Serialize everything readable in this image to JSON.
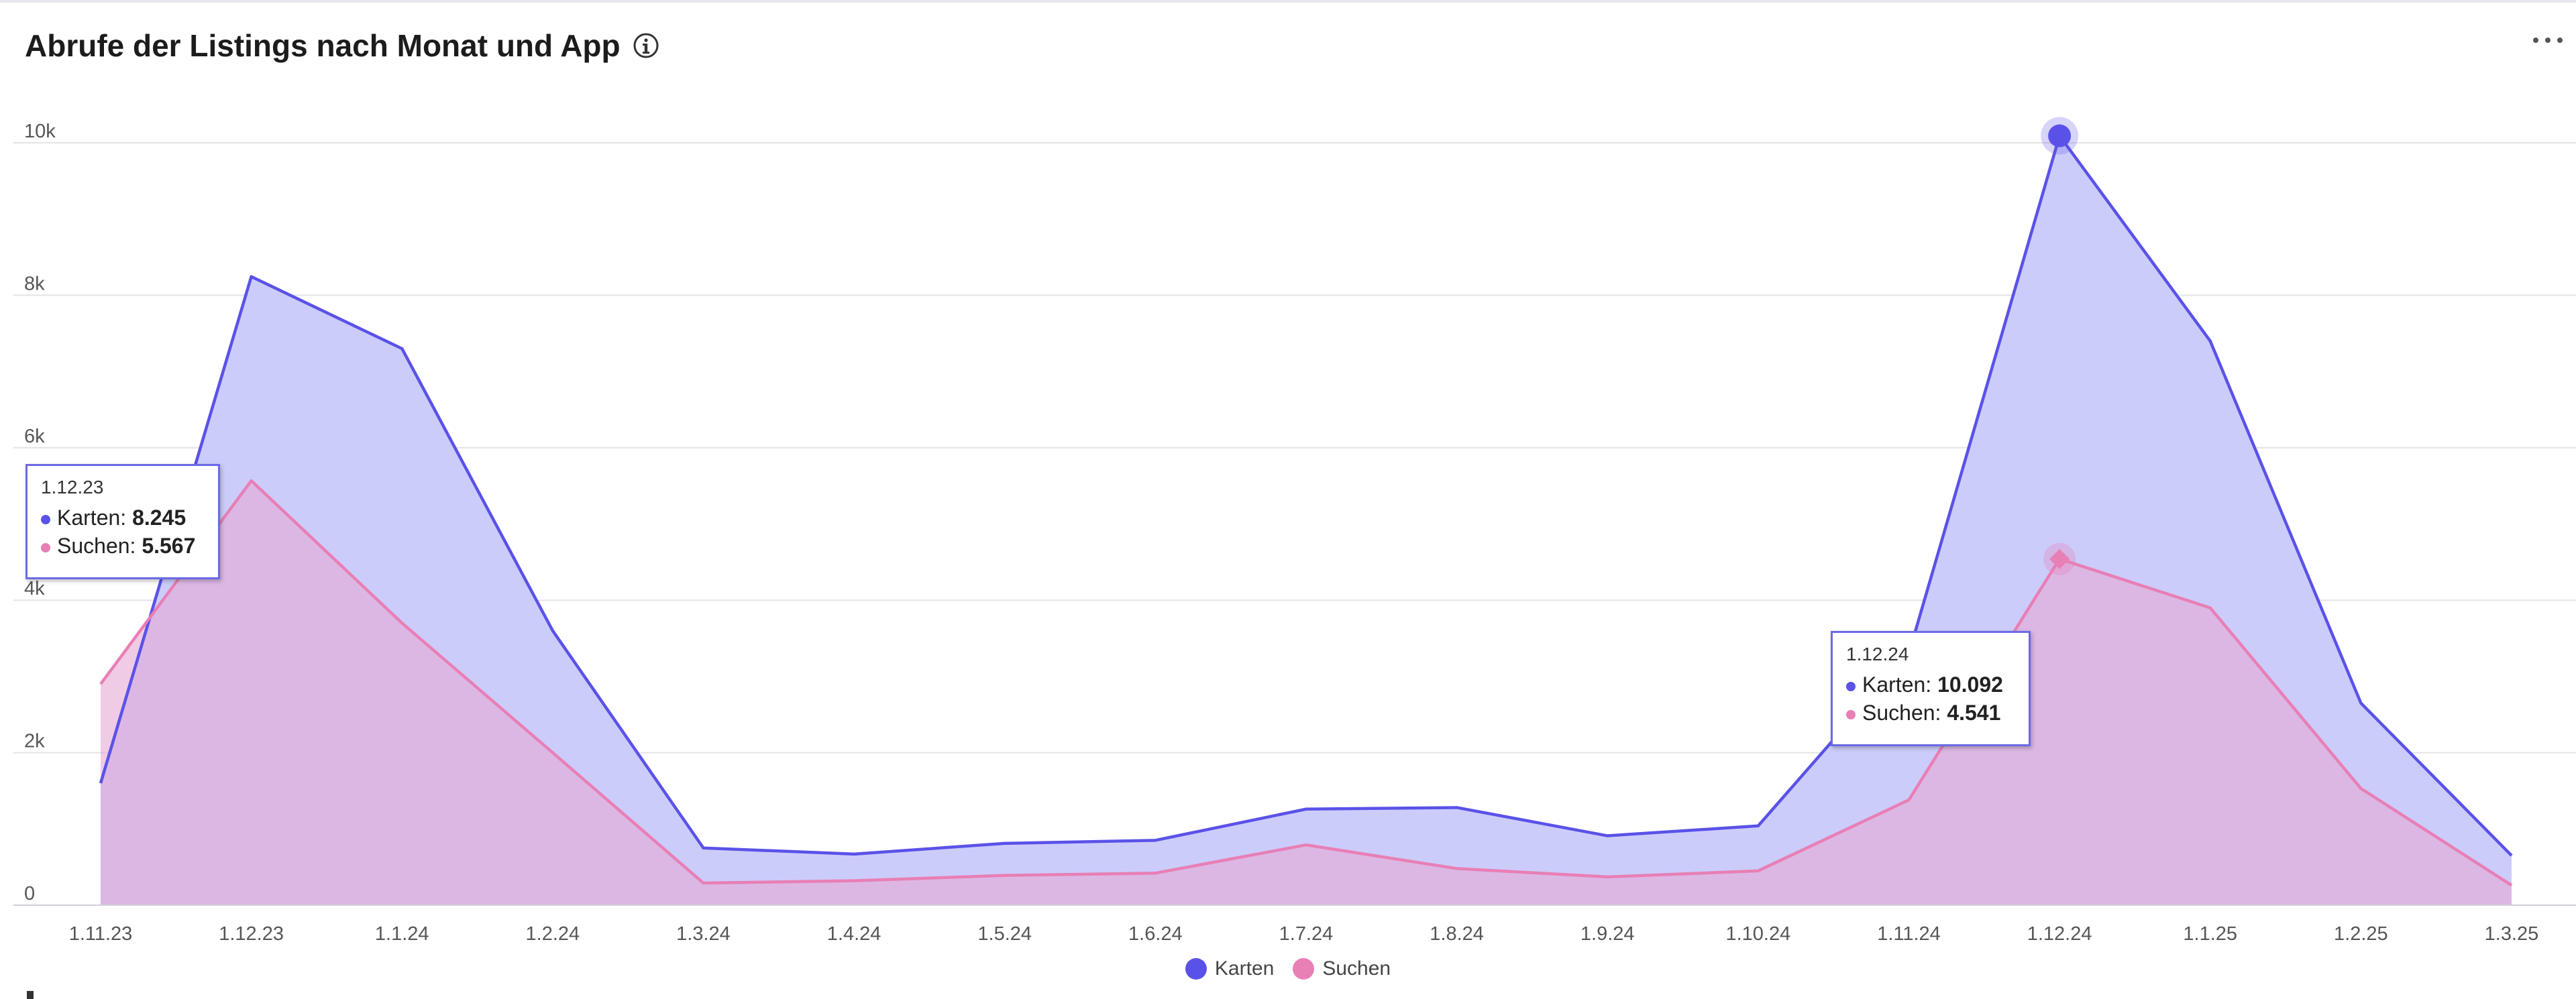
{
  "header": {
    "title": "Abrufe der Listings nach Monat und App"
  },
  "icons": {
    "info": "info-circle-icon",
    "more": "more-horizontal-icon"
  },
  "colors": {
    "karten": "#5a52e8",
    "karten_fill": "#c9c9fa",
    "suchen": "#e87fb5",
    "suchen_fill": "#d6b3e0",
    "grid": "#e3e3e8",
    "axis_text": "#555555"
  },
  "chart_data": {
    "type": "area",
    "x": [
      "1.11.23",
      "1.12.23",
      "1.1.24",
      "1.2.24",
      "1.3.24",
      "1.4.24",
      "1.5.24",
      "1.6.24",
      "1.7.24",
      "1.8.24",
      "1.9.24",
      "1.10.24",
      "1.11.24",
      "1.12.24",
      "1.1.25",
      "1.2.25",
      "1.3.25"
    ],
    "series": [
      {
        "name": "Karten",
        "values": [
          1600,
          8245,
          7300,
          3600,
          750,
          670,
          810,
          850,
          1260,
          1280,
          910,
          1040,
          3300,
          10092,
          7400,
          2650,
          650
        ]
      },
      {
        "name": "Suchen",
        "values": [
          2900,
          5567,
          3700,
          2000,
          290,
          320,
          390,
          420,
          790,
          480,
          370,
          450,
          1380,
          4541,
          3900,
          1530,
          260
        ]
      }
    ],
    "y_ticks": [
      0,
      2000,
      4000,
      6000,
      8000,
      10000
    ],
    "y_tick_labels": [
      "0",
      "2k",
      "4k",
      "6k",
      "8k",
      "10k"
    ],
    "ylim": [
      0,
      10500
    ],
    "grid": true,
    "legend_position": "bottom-center",
    "highlighted": [
      "1.12.23",
      "1.12.24"
    ]
  },
  "tooltips": [
    {
      "date": "1.12.23",
      "karten_label": "Karten:",
      "karten_value": "8.245",
      "suchen_label": "Suchen:",
      "suchen_value": "5.567"
    },
    {
      "date": "1.12.24",
      "karten_label": "Karten:",
      "karten_value": "10.092",
      "suchen_label": "Suchen:",
      "suchen_value": "4.541"
    }
  ],
  "legend": {
    "karten": "Karten",
    "suchen": "Suchen"
  }
}
